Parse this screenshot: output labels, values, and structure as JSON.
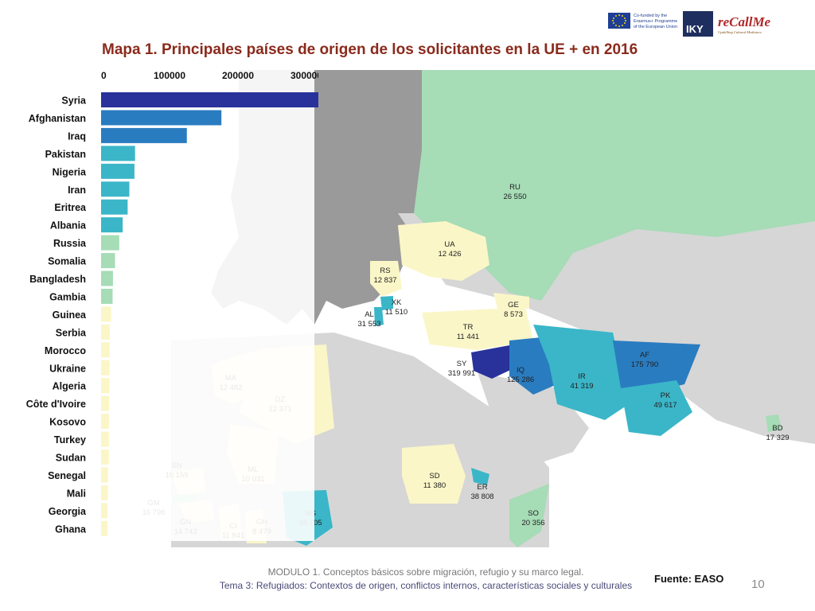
{
  "title": "Mapa 1. Principales países de origen de los solicitantes en la UE + en 2016",
  "logos": {
    "erasmus_text": [
      "Co-funded by the",
      "Erasmus+ Programme",
      "of the European Union"
    ],
    "iky_text": "IKY",
    "recall_text": "reCallMe",
    "recall_subtitle": "Upskilling Cultural Mediators"
  },
  "colors": {
    "title": "#8a2a1c",
    "level_very_high": "#28329a",
    "level_high": "#2a7cc0",
    "level_mid": "#3ab6c8",
    "level_low_green": "#a6dcb6",
    "level_low_yellow": "#fbf6c8",
    "land_gray": "#9a9a9a",
    "land_light": "#d6d6d6"
  },
  "chart_data": {
    "type": "bar",
    "orientation": "horizontal",
    "categories": [
      "Syria",
      "Afghanistan",
      "Iraq",
      "Pakistan",
      "Nigeria",
      "Iran",
      "Eritrea",
      "Albania",
      "Russia",
      "Somalia",
      "Bangladesh",
      "Gambia",
      "Guinea",
      "Serbia",
      "Morocco",
      "Ukraine",
      "Algeria",
      "Côte d'Ivoire",
      "Kosovo",
      "Turkey",
      "Sudan",
      "Senegal",
      "Mali",
      "Georgia",
      "Ghana"
    ],
    "values": [
      319991,
      175790,
      125286,
      49617,
      48705,
      41319,
      38808,
      31553,
      26550,
      20356,
      17329,
      16798,
      14743,
      12837,
      12482,
      12426,
      12371,
      11841,
      11510,
      11441,
      11380,
      10159,
      10031,
      8573,
      8479
    ],
    "bar_colors": [
      "#28329a",
      "#2a7cc0",
      "#2a7cc0",
      "#3ab6c8",
      "#3ab6c8",
      "#3ab6c8",
      "#3ab6c8",
      "#3ab6c8",
      "#a6dcb6",
      "#a6dcb6",
      "#a6dcb6",
      "#a6dcb6",
      "#fbf6c8",
      "#fbf6c8",
      "#fbf6c8",
      "#fbf6c8",
      "#fbf6c8",
      "#fbf6c8",
      "#fbf6c8",
      "#fbf6c8",
      "#fbf6c8",
      "#fbf6c8",
      "#fbf6c8",
      "#fbf6c8",
      "#fbf6c8"
    ],
    "xticks": [
      0,
      100000,
      200000,
      300000
    ],
    "xtick_labels": [
      "0",
      "100000",
      "200000",
      "300000"
    ],
    "xlim": [
      0,
      330000
    ],
    "axis_position": "top",
    "grid": false,
    "legend": "none"
  },
  "map_labels": [
    {
      "code": "RU",
      "value": "26 550"
    },
    {
      "code": "UA",
      "value": "12 426"
    },
    {
      "code": "RS",
      "value": "12 837"
    },
    {
      "code": "XK",
      "value": "11 510"
    },
    {
      "code": "AL",
      "value": "31 553"
    },
    {
      "code": "GE",
      "value": "8 573"
    },
    {
      "code": "TR",
      "value": "11 441"
    },
    {
      "code": "SY",
      "value": "319 991"
    },
    {
      "code": "IQ",
      "value": "125 286"
    },
    {
      "code": "IR",
      "value": "41 319"
    },
    {
      "code": "AF",
      "value": "175 790"
    },
    {
      "code": "PK",
      "value": "49 617"
    },
    {
      "code": "BD",
      "value": "17 329"
    },
    {
      "code": "MA",
      "value": "12 482"
    },
    {
      "code": "DZ",
      "value": "12 371"
    },
    {
      "code": "SN",
      "value": "10 159"
    },
    {
      "code": "ML",
      "value": "10 031"
    },
    {
      "code": "GM",
      "value": "16 798"
    },
    {
      "code": "GN",
      "value": "14 743"
    },
    {
      "code": "CI",
      "value": "11 841"
    },
    {
      "code": "GH",
      "value": "8 479"
    },
    {
      "code": "NG",
      "value": "48 705"
    },
    {
      "code": "SD",
      "value": "11 380"
    },
    {
      "code": "ER",
      "value": "38 808"
    },
    {
      "code": "SO",
      "value": "20 356"
    }
  ],
  "footer": {
    "line1": "MODULO 1. Conceptos básicos sobre migración, refugio y su marco legal.",
    "line2": "Tema 3: Refugiados: Contextos de origen, conflictos internos, características sociales y culturales",
    "source": "Fuente: EASO",
    "page": "10"
  }
}
